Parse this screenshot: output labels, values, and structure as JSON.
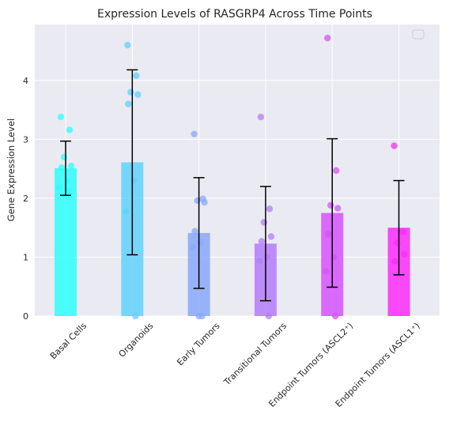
{
  "chart_data": {
    "type": "bar",
    "title": "Expression Levels of RASGRP4 Across Time Points",
    "xlabel": "",
    "ylabel": "Gene Expression Level",
    "ylim": [
      0,
      4.95
    ],
    "yticks": [
      0,
      1,
      2,
      3,
      4
    ],
    "grid": true,
    "legend": "top-right",
    "categories": [
      "Basal Cells",
      "Organoids",
      "Early Tumors",
      "Transitional Tumors",
      "Endpoint Tumors (ASCL2⁺)",
      "Endpoint Tumors (ASCL1⁺)"
    ],
    "values": [
      2.51,
      2.61,
      1.41,
      1.23,
      1.75,
      1.5
    ],
    "error": [
      0.46,
      1.57,
      0.94,
      0.97,
      1.26,
      0.8
    ],
    "colors": [
      "#2cfffb",
      "#5fd2fb",
      "#8aa8fb",
      "#b47dfb",
      "#d552fb",
      "#fb2bfb"
    ],
    "points": [
      [
        3.38,
        3.16,
        2.7,
        2.55,
        2.52,
        2.3,
        2.18,
        2.12
      ],
      [
        4.6,
        4.08,
        3.8,
        3.76,
        3.6,
        2.3,
        1.78,
        0.0
      ],
      [
        3.09,
        1.99,
        1.96,
        1.93,
        1.44,
        1.25,
        1.17,
        0.0,
        0.0
      ],
      [
        3.38,
        1.82,
        1.59,
        1.35,
        1.27,
        1.0,
        0.93,
        0.0
      ],
      [
        4.72,
        2.47,
        1.88,
        1.83,
        1.39,
        1.0,
        0.76,
        0.0
      ],
      [
        2.89,
        1.43,
        1.24,
        1.05,
        0.93
      ]
    ]
  }
}
